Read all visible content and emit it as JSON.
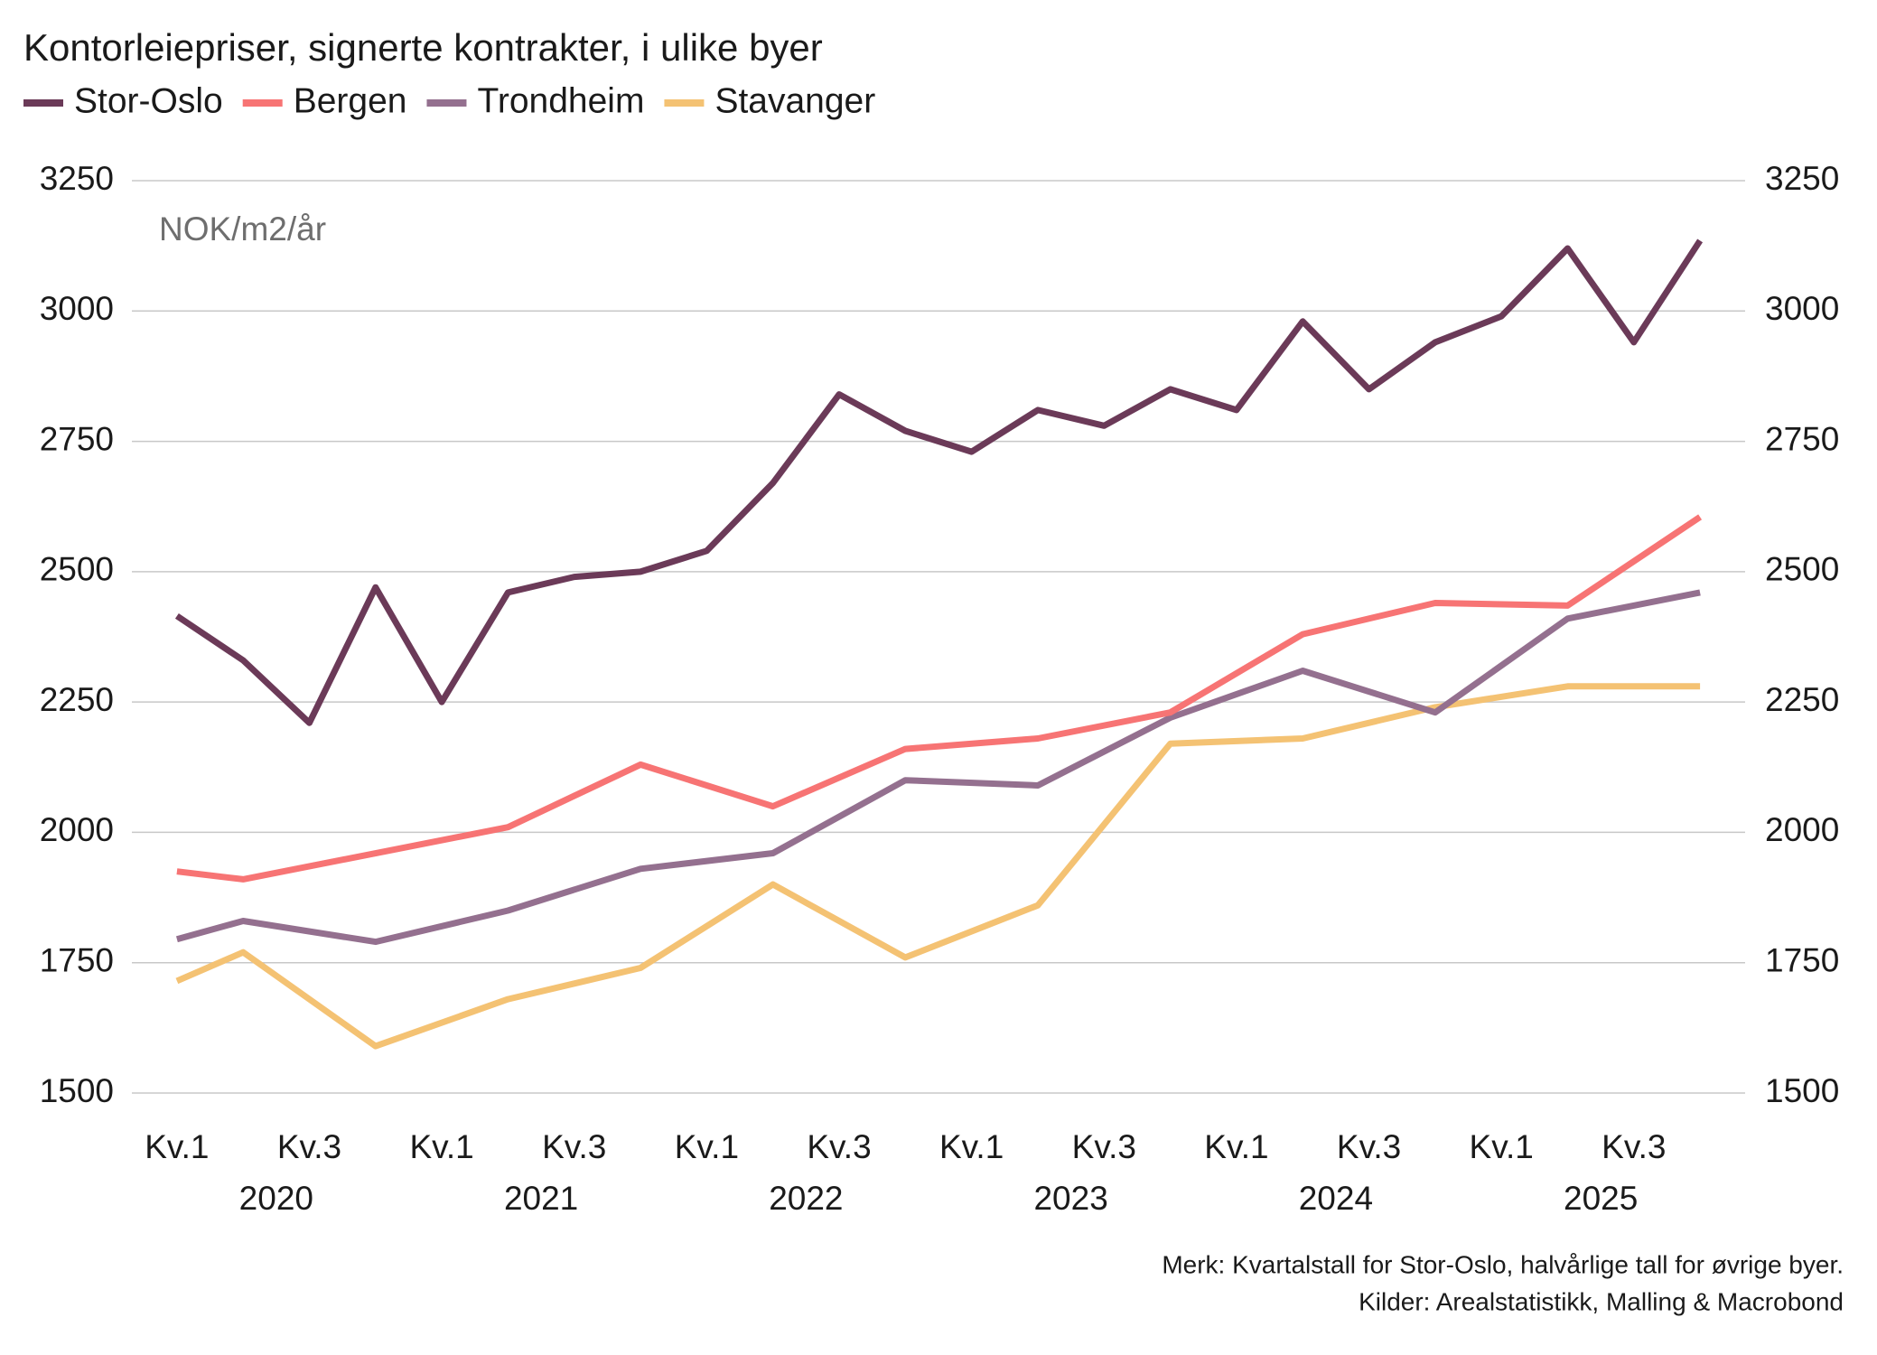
{
  "chart_data": {
    "type": "line",
    "title": "Kontorleiepriser, signerte kontrakter, i ulike byer",
    "y_unit_label": "NOK/m2/år",
    "notes": [
      "Merk: Kvartalstall for Stor-Oslo, halvårlige tall for øvrige byer.",
      "Kilder: Arealstatistikk, Malling & Macrobond"
    ],
    "xlim": [
      2019.83,
      2025.92
    ],
    "xticks": [
      {
        "value": 2020,
        "label": "Kv.1"
      },
      {
        "value": 2020.5,
        "label": "Kv.3"
      },
      {
        "value": 2021,
        "label": "Kv.1"
      },
      {
        "value": 2021.5,
        "label": "Kv.3"
      },
      {
        "value": 2022,
        "label": "Kv.1"
      },
      {
        "value": 2022.5,
        "label": "Kv.3"
      },
      {
        "value": 2023,
        "label": "Kv.1"
      },
      {
        "value": 2023.5,
        "label": "Kv.3"
      },
      {
        "value": 2024,
        "label": "Kv.1"
      },
      {
        "value": 2024.5,
        "label": "Kv.3"
      },
      {
        "value": 2025,
        "label": "Kv.1"
      },
      {
        "value": 2025.5,
        "label": "Kv.3"
      }
    ],
    "xgroups": [
      {
        "value": 2020.375,
        "label": "2020"
      },
      {
        "value": 2021.375,
        "label": "2021"
      },
      {
        "value": 2022.375,
        "label": "2022"
      },
      {
        "value": 2023.375,
        "label": "2023"
      },
      {
        "value": 2024.375,
        "label": "2024"
      },
      {
        "value": 2025.375,
        "label": "2025"
      }
    ],
    "ylim": [
      1500,
      3250
    ],
    "yticks": [
      1500,
      1750,
      2000,
      2250,
      2500,
      2750,
      3000,
      3250
    ],
    "y2lim": [
      1500,
      3250
    ],
    "y2ticks": [
      1500,
      1750,
      2000,
      2250,
      2500,
      2750,
      3000,
      3250
    ],
    "grid": true,
    "series": [
      {
        "name": "Stor-Oslo",
        "color": "#6b3a58",
        "x": [
          2020,
          2020.25,
          2020.5,
          2020.75,
          2021,
          2021.25,
          2021.5,
          2021.75,
          2022,
          2022.25,
          2022.5,
          2022.75,
          2023,
          2023.25,
          2023.5,
          2023.75,
          2024,
          2024.25,
          2024.5,
          2024.75,
          2025,
          2025.25,
          2025.5,
          2025.75
        ],
        "values": [
          2415,
          2330,
          2210,
          2470,
          2250,
          2460,
          2490,
          2500,
          2540,
          2670,
          2840,
          2770,
          2730,
          2810,
          2780,
          2850,
          2810,
          2980,
          2850,
          2940,
          2990,
          3120,
          2940,
          3135
        ]
      },
      {
        "name": "Bergen",
        "color": "#f77474",
        "x": [
          2020,
          2020.25,
          2021.25,
          2021.75,
          2022.25,
          2022.75,
          2023.25,
          2023.75,
          2024.25,
          2024.75,
          2025.25,
          2025.75
        ],
        "values": [
          1925,
          1910,
          2010,
          2130,
          2050,
          2160,
          2180,
          2230,
          2380,
          2440,
          2435,
          2605
        ]
      },
      {
        "name": "Trondheim",
        "color": "#94708f",
        "x": [
          2020,
          2020.25,
          2020.75,
          2021.25,
          2021.75,
          2022.25,
          2022.75,
          2023.25,
          2023.75,
          2024.25,
          2024.75,
          2025.25,
          2025.75
        ],
        "values": [
          1795,
          1830,
          1790,
          1850,
          1930,
          1960,
          2100,
          2090,
          2220,
          2310,
          2230,
          2410,
          2460
        ]
      },
      {
        "name": "Stavanger",
        "color": "#f4c273",
        "x": [
          2020,
          2020.25,
          2020.75,
          2021.25,
          2021.75,
          2022.25,
          2022.75,
          2023.25,
          2023.75,
          2024.25,
          2024.75,
          2025.25,
          2025.75
        ],
        "values": [
          1715,
          1770,
          1590,
          1680,
          1740,
          1900,
          1760,
          1860,
          2170,
          2180,
          2240,
          2280,
          2280
        ]
      }
    ]
  }
}
